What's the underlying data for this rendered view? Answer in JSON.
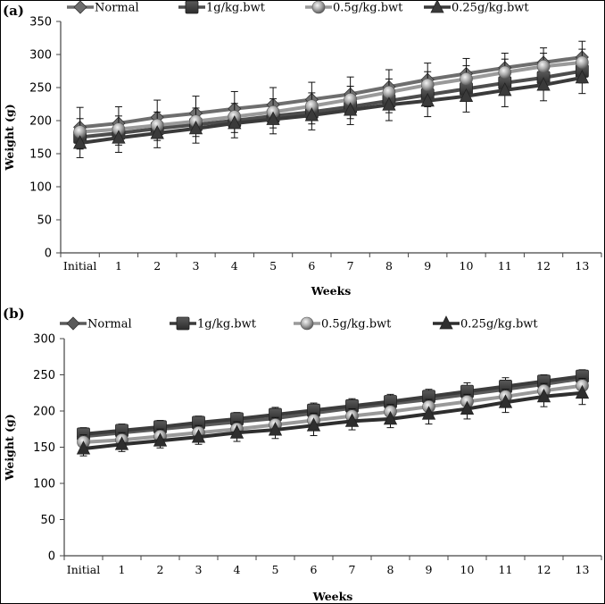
{
  "chart_data": [
    {
      "panel_label": "(a)",
      "type": "line",
      "title": "",
      "xlabel": "Weeks",
      "ylabel": "Weight (g)",
      "ylim": [
        0,
        350
      ],
      "yticks": [
        0,
        50,
        100,
        150,
        200,
        250,
        300,
        350
      ],
      "categories": [
        "Initial",
        "1",
        "2",
        "3",
        "4",
        "5",
        "6",
        "7",
        "8",
        "9",
        "10",
        "11",
        "12",
        "13"
      ],
      "grid": false,
      "legend_position": "top",
      "error_bars": true,
      "series": [
        {
          "name": "Normal",
          "marker": "diamond",
          "color": "#6e6e6e",
          "values": [
            190,
            196,
            205,
            211,
            218,
            224,
            232,
            240,
            251,
            262,
            271,
            280,
            288,
            296
          ],
          "errors": [
            30,
            25,
            26,
            26,
            26,
            26,
            26,
            26,
            26,
            25,
            23,
            22,
            22,
            24
          ]
        },
        {
          "name": "1g/kg.bwt",
          "marker": "square",
          "color": "#4d4d4d",
          "values": [
            175,
            181,
            188,
            194,
            200,
            207,
            213,
            221,
            230,
            239,
            248,
            257,
            265,
            275
          ],
          "errors": [
            18,
            18,
            18,
            18,
            18,
            18,
            18,
            18,
            18,
            18,
            18,
            18,
            18,
            18
          ]
        },
        {
          "name": "0.5g/kg.bwt",
          "marker": "circle",
          "color": "#9a9a9a",
          "values": [
            183,
            187,
            193,
            199,
            206,
            213,
            222,
            232,
            243,
            254,
            263,
            273,
            282,
            288
          ],
          "errors": [
            20,
            20,
            20,
            20,
            20,
            20,
            20,
            20,
            20,
            20,
            20,
            20,
            20,
            20
          ]
        },
        {
          "name": "0.25g/kg.bwt",
          "marker": "triangle",
          "color": "#3a3a3a",
          "values": [
            166,
            174,
            181,
            188,
            196,
            202,
            208,
            216,
            224,
            230,
            237,
            246,
            254,
            265
          ],
          "errors": [
            22,
            22,
            22,
            22,
            22,
            22,
            22,
            22,
            24,
            24,
            24,
            25,
            24,
            24
          ]
        }
      ]
    },
    {
      "panel_label": "(b)",
      "type": "line",
      "title": "",
      "xlabel": "Weeks",
      "ylabel": "Weight (g)",
      "ylim": [
        0,
        300
      ],
      "yticks": [
        0,
        50,
        100,
        150,
        200,
        250,
        300
      ],
      "categories": [
        "Initial",
        "1",
        "2",
        "3",
        "4",
        "5",
        "6",
        "7",
        "8",
        "9",
        "10",
        "11",
        "12",
        "13"
      ],
      "grid": false,
      "legend_position": "top",
      "error_bars": true,
      "series": [
        {
          "name": "Normal",
          "marker": "diamond",
          "color": "#5a5a5a",
          "values": [
            165,
            170,
            175,
            180,
            185,
            190,
            197,
            204,
            210,
            216,
            223,
            230,
            237,
            245
          ],
          "errors": [
            8,
            8,
            9,
            9,
            10,
            10,
            10,
            10,
            10,
            10,
            12,
            12,
            10,
            10
          ]
        },
        {
          "name": "1g/kg.bwt",
          "marker": "square",
          "color": "#3c3c3c",
          "values": [
            168,
            173,
            178,
            184,
            189,
            195,
            201,
            207,
            213,
            220,
            227,
            234,
            241,
            248
          ],
          "errors": [
            9,
            9,
            9,
            9,
            9,
            10,
            10,
            10,
            10,
            10,
            12,
            12,
            9,
            9
          ]
        },
        {
          "name": "0.5g/kg.bwt",
          "marker": "circle",
          "color": "#9a9a9a",
          "values": [
            157,
            160,
            165,
            170,
            175,
            181,
            187,
            193,
            199,
            206,
            213,
            220,
            228,
            235
          ],
          "errors": [
            10,
            10,
            10,
            10,
            10,
            10,
            10,
            10,
            10,
            10,
            10,
            10,
            10,
            10
          ]
        },
        {
          "name": "0.25g/kg.bwt",
          "marker": "triangle",
          "color": "#2e2e2e",
          "values": [
            148,
            154,
            159,
            164,
            170,
            174,
            180,
            186,
            189,
            196,
            203,
            212,
            220,
            225
          ],
          "errors": [
            10,
            10,
            10,
            10,
            12,
            12,
            14,
            12,
            12,
            14,
            14,
            14,
            14,
            16
          ]
        }
      ]
    }
  ]
}
